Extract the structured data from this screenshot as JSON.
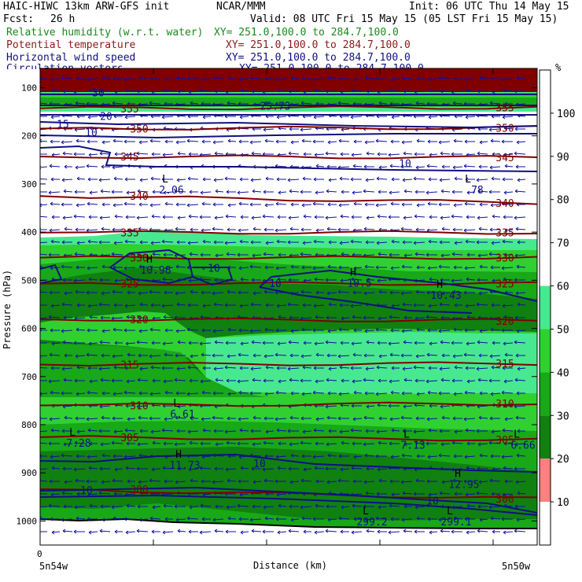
{
  "header": {
    "model_line": "HAIC-HIWC 13km ARW-GFS init",
    "org": "NCAR/MMM",
    "init": "Init: 06 UTC Thu 14 May 15",
    "fcst_label": "Fcst:",
    "fcst_value": "26 h",
    "valid": "Valid: 08 UTC Fri 15 May 15 (05 LST Fri 15 May 15)"
  },
  "fields": [
    {
      "name": "Relative humidity (w.r.t. water)",
      "xy": "XY= 251.0,100.0 to 284.7,100.0",
      "color": "#1b8a1b"
    },
    {
      "name": "Potential temperature",
      "xy": "XY= 251.0,100.0 to 284.7,100.0",
      "color": "#8b1a1a"
    },
    {
      "name": "Horizontal wind speed",
      "xy": "XY= 251.0,100.0 to 284.7,100.0",
      "color": "#101080"
    },
    {
      "name": "Circulation vectors",
      "xy": "XY= 251.0,100.0 to 284.7,100.0",
      "color": "#101080"
    }
  ],
  "colorbar": {
    "unit": "%",
    "ticks": [
      "100",
      "90",
      "80",
      "70",
      "60",
      "50",
      "40",
      "30",
      "20",
      "10"
    ],
    "colors": [
      "#ffffff",
      "#ffffff",
      "#ffffff",
      "#ffffff",
      "#ffffff",
      "#48e890",
      "#30d030",
      "#18a818",
      "#108010",
      "#ff8080",
      "#ffffff"
    ]
  },
  "chart_data": {
    "type": "cross-section",
    "ylabel": "Pressure (hPa)",
    "xlabel": "Distance (km)",
    "x_tick": "0",
    "x_left_label": "5n54w",
    "x_right_label": "5n50w",
    "y_ticks": [
      100,
      200,
      300,
      400,
      500,
      600,
      700,
      800,
      900,
      1000
    ],
    "ylim": [
      1050,
      60
    ],
    "theta_labels": [
      {
        "text": "355",
        "p": 143,
        "pos": "left"
      },
      {
        "text": "355",
        "p": 141,
        "pos": "right"
      },
      {
        "text": "350",
        "p": 185,
        "pos": "left"
      },
      {
        "text": "350",
        "p": 183,
        "pos": "right"
      },
      {
        "text": "345",
        "p": 243,
        "pos": "left"
      },
      {
        "text": "345",
        "p": 245,
        "pos": "right"
      },
      {
        "text": "340",
        "p": 325,
        "pos": "left"
      },
      {
        "text": "340",
        "p": 339,
        "pos": "right"
      },
      {
        "text": "335",
        "p": 401,
        "pos": "left"
      },
      {
        "text": "335",
        "p": 401,
        "pos": "right"
      },
      {
        "text": "330",
        "p": 453,
        "pos": "left"
      },
      {
        "text": "330",
        "p": 453,
        "pos": "right"
      },
      {
        "text": "325",
        "p": 507,
        "pos": "left"
      },
      {
        "text": "325",
        "p": 507,
        "pos": "right"
      },
      {
        "text": "320",
        "p": 581,
        "pos": "left"
      },
      {
        "text": "320",
        "p": 584,
        "pos": "right"
      },
      {
        "text": "315",
        "p": 675,
        "pos": "left"
      },
      {
        "text": "315",
        "p": 673,
        "pos": "right"
      },
      {
        "text": "310",
        "p": 760,
        "pos": "left"
      },
      {
        "text": "310",
        "p": 756,
        "pos": "right"
      },
      {
        "text": "305",
        "p": 826,
        "pos": "left"
      },
      {
        "text": "305",
        "p": 831,
        "pos": "right"
      },
      {
        "text": "300",
        "p": 934,
        "pos": "left"
      },
      {
        "text": "300",
        "p": 954,
        "pos": "right"
      }
    ],
    "wind_labels": [
      {
        "text": "30",
        "p": 110
      },
      {
        "text": "25.73",
        "p": 138
      },
      {
        "text": "20",
        "p": 159
      },
      {
        "text": "15",
        "p": 175
      },
      {
        "text": "10",
        "p": 192
      },
      {
        "text": "10",
        "p": 257
      },
      {
        "text": "10",
        "p": 474
      },
      {
        "text": "10",
        "p": 506
      },
      {
        "text": "10",
        "p": 880
      },
      {
        "text": "10",
        "p": 936
      },
      {
        "text": "10",
        "p": 958
      }
    ],
    "extrema": [
      {
        "kind": "L",
        "value": "2.06",
        "p": 313
      },
      {
        "kind": "L",
        "value": ".78",
        "p": 313
      },
      {
        "kind": "H",
        "value": "10.98",
        "p": 480
      },
      {
        "kind": "H",
        "value": "10.5",
        "p": 507
      },
      {
        "kind": "H",
        "value": "10.43",
        "p": 532
      },
      {
        "kind": "L",
        "value": "6.61",
        "p": 779
      },
      {
        "kind": "L",
        "value": "7.28",
        "p": 839
      },
      {
        "kind": "L",
        "value": "7.13",
        "p": 843
      },
      {
        "kind": "L",
        "value": "6.66",
        "p": 843
      },
      {
        "kind": "H",
        "value": "11.73",
        "p": 885
      },
      {
        "kind": "H",
        "value": "12.95",
        "p": 925
      },
      {
        "kind": "L",
        "value": "299.2",
        "p": 1003
      },
      {
        "kind": "L",
        "value": "299.1",
        "p": 1003
      }
    ]
  }
}
